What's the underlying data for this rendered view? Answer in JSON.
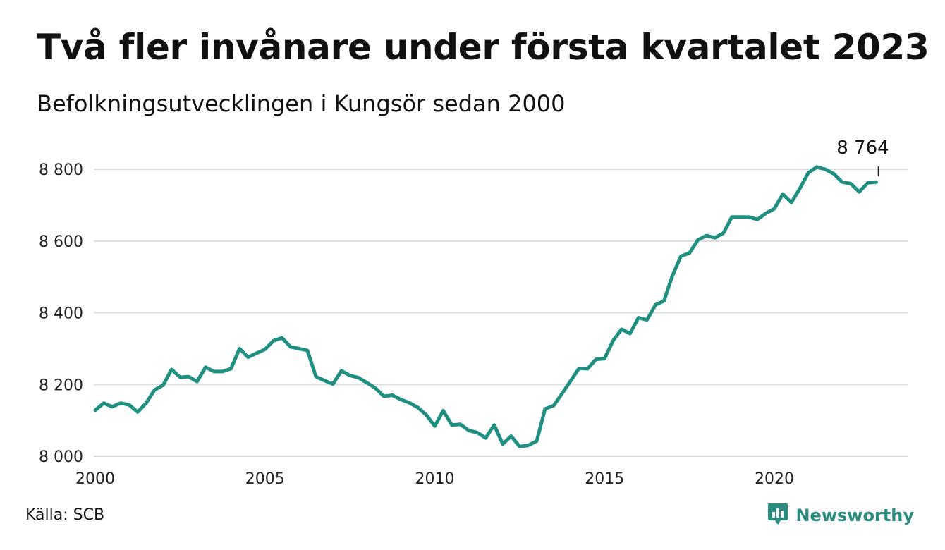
{
  "header": {
    "title": "Två fler invånare under första kvartalet 2023",
    "subtitle": "Befolkningsutvecklingen i Kungsör sedan 2000"
  },
  "footer": {
    "source": "Källa: SCB",
    "brand": "Newsworthy",
    "brand_icon": "chart-bubble-icon"
  },
  "colors": {
    "line": "#1f8f82",
    "grid": "#dcdcdc",
    "brand": "#2a8c80"
  },
  "chart_data": {
    "type": "line",
    "title": "Två fler invånare under första kvartalet 2023",
    "subtitle": "Befolkningsutvecklingen i Kungsör sedan 2000",
    "xlabel": "",
    "ylabel": "",
    "xlim": [
      2000,
      2023.75
    ],
    "ylim": [
      8000,
      8850
    ],
    "x_ticks": [
      2000,
      2005,
      2010,
      2015,
      2020
    ],
    "x_tick_labels": [
      "2000",
      "2005",
      "2010",
      "2015",
      "2020"
    ],
    "y_ticks": [
      8000,
      8200,
      8400,
      8600,
      8800
    ],
    "y_tick_labels": [
      "8 000",
      "8 200",
      "8 400",
      "8 600",
      "8 800"
    ],
    "grid": true,
    "annotation": {
      "x": 2023.0,
      "y": 8764,
      "text": "8 764"
    },
    "series": [
      {
        "x": [
          2000.0,
          2000.25,
          2000.5,
          2000.75,
          2001.0,
          2001.25,
          2001.5,
          2001.75,
          2002.0,
          2002.25,
          2002.5,
          2002.75,
          2003.0,
          2003.25,
          2003.5,
          2003.75,
          2004.0,
          2004.25,
          2004.5,
          2004.75,
          2005.0,
          2005.25,
          2005.5,
          2005.75,
          2006.0,
          2006.25,
          2006.5,
          2006.75,
          2007.0,
          2007.25,
          2007.5,
          2007.75,
          2008.0,
          2008.25,
          2008.5,
          2008.75,
          2009.0,
          2009.25,
          2009.5,
          2009.75,
          2010.0,
          2010.25,
          2010.5,
          2010.75,
          2011.0,
          2011.25,
          2011.5,
          2011.75,
          2012.0,
          2012.25,
          2012.5,
          2012.75,
          2013.0,
          2013.25,
          2013.5,
          2013.75,
          2014.0,
          2014.25,
          2014.5,
          2014.75,
          2015.0,
          2015.25,
          2015.5,
          2015.75,
          2016.0,
          2016.25,
          2016.5,
          2016.75,
          2017.0,
          2017.25,
          2017.5,
          2017.75,
          2018.0,
          2018.25,
          2018.5,
          2018.75,
          2019.0,
          2019.25,
          2019.5,
          2019.75,
          2020.0,
          2020.25,
          2020.5,
          2020.75,
          2021.0,
          2021.25,
          2021.5,
          2021.75,
          2022.0,
          2022.25,
          2022.5,
          2022.75,
          2023.0
        ],
        "y": [
          8128,
          8148,
          8138,
          8148,
          8143,
          8123,
          8148,
          8185,
          8198,
          8242,
          8220,
          8222,
          8208,
          8248,
          8236,
          8236,
          8244,
          8300,
          8276,
          8287,
          8298,
          8322,
          8330,
          8305,
          8300,
          8295,
          8222,
          8211,
          8201,
          8238,
          8225,
          8219,
          8205,
          8190,
          8167,
          8170,
          8158,
          8149,
          8136,
          8115,
          8084,
          8127,
          8087,
          8089,
          8072,
          8066,
          8051,
          8087,
          8034,
          8056,
          8027,
          8030,
          8042,
          8132,
          8141,
          8175,
          8210,
          8245,
          8244,
          8270,
          8272,
          8322,
          8354,
          8342,
          8386,
          8380,
          8422,
          8433,
          8503,
          8558,
          8566,
          8603,
          8615,
          8609,
          8622,
          8667,
          8667,
          8667,
          8660,
          8677,
          8690,
          8731,
          8707,
          8746,
          8790,
          8806,
          8800,
          8787,
          8764,
          8760,
          8737,
          8762,
          8764
        ]
      }
    ]
  }
}
